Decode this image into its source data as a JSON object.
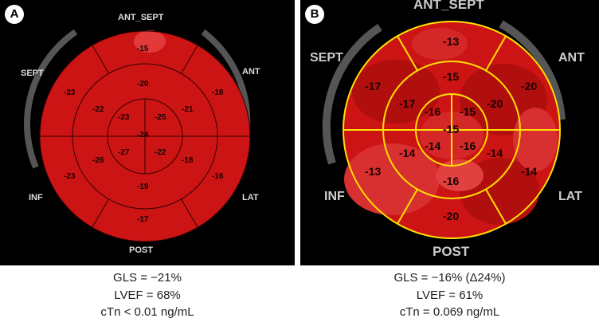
{
  "panels": [
    {
      "letter": "A",
      "labels": {
        "ant_sept": "ANT_SEPT",
        "ant": "ANT",
        "lat": "LAT",
        "post": "POST",
        "inf": "INF",
        "sept": "SEPT"
      },
      "segments": {
        "basal": [
          "-15",
          "-18",
          "-16",
          "-17",
          "-23",
          "-23"
        ],
        "mid": [
          "-20",
          "-21",
          "-18",
          "-19",
          "-26",
          "-22"
        ],
        "apical": [
          "-25",
          "-22",
          "-27",
          "-23"
        ],
        "apex": "-24"
      },
      "caption": {
        "gls": "GLS = −21%",
        "lvef": "LVEF = 68%",
        "ctn": "cTn < 0.01 ng/mL"
      }
    },
    {
      "letter": "B",
      "labels": {
        "ant_sept": "ANT_SEPT",
        "ant": "ANT",
        "lat": "LAT",
        "post": "POST",
        "inf": "INF",
        "sept": "SEPT"
      },
      "segments": {
        "basal": [
          "-13",
          "-20",
          "-14",
          "-20",
          "-13",
          "-17"
        ],
        "mid": [
          "-15",
          "-20",
          "-14",
          "-16",
          "-14",
          "-17"
        ],
        "apical": [
          "-15",
          "-16",
          "-14",
          "-16"
        ],
        "apex": "-15"
      },
      "caption": {
        "gls": "GLS = −16% (Δ24%)",
        "lvef": "LVEF = 61%",
        "ctn": "cTn = 0.069 ng/mL"
      }
    }
  ],
  "colors": {
    "fill": "#cc1414",
    "fill_dark": "#b10e0e",
    "fill_light": "#e23a3a",
    "ring": "#555555",
    "grid_a": "#300000",
    "grid_b": "#ffe000"
  }
}
